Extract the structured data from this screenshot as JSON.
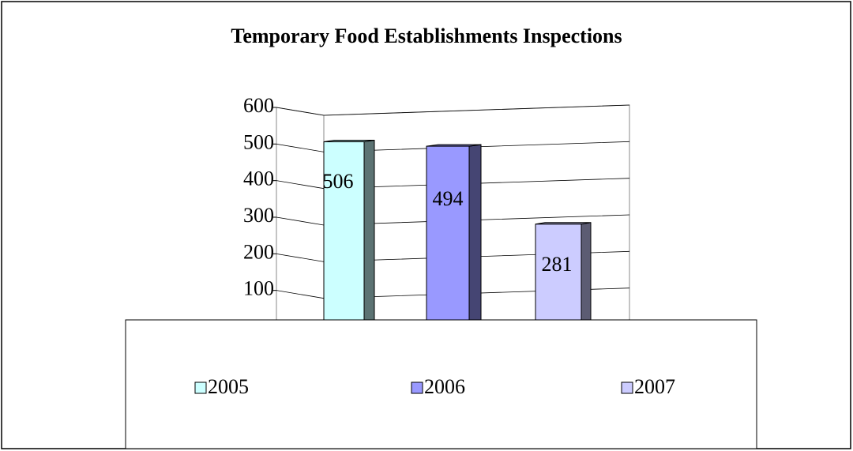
{
  "chart_data": {
    "type": "bar3d",
    "title": "Temporary Food Establishments Inspections",
    "series": [
      {
        "name": "2005",
        "color": "#ccffff",
        "values": [
          506
        ]
      },
      {
        "name": "2006",
        "color": "#9999ff",
        "values": [
          494
        ]
      },
      {
        "name": "2007",
        "color": "#ccccff",
        "values": [
          281
        ]
      }
    ],
    "ylim": [
      0,
      600
    ],
    "yticks": [
      100,
      200,
      300,
      400,
      500,
      600
    ],
    "grid": true,
    "legend": "bottom"
  }
}
